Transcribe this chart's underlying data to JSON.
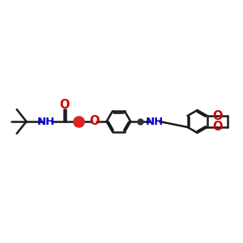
{
  "bg_color": "#ffffff",
  "bond_color": "#1a1a1a",
  "oxygen_color": "#cc0000",
  "nitrogen_color": "#0000cc",
  "line_width": 1.8,
  "font_size": 9.5,
  "fig_w": 3.0,
  "fig_h": 3.0,
  "dpi": 100,
  "xlim": [
    0,
    10
  ],
  "ylim": [
    2,
    8
  ]
}
